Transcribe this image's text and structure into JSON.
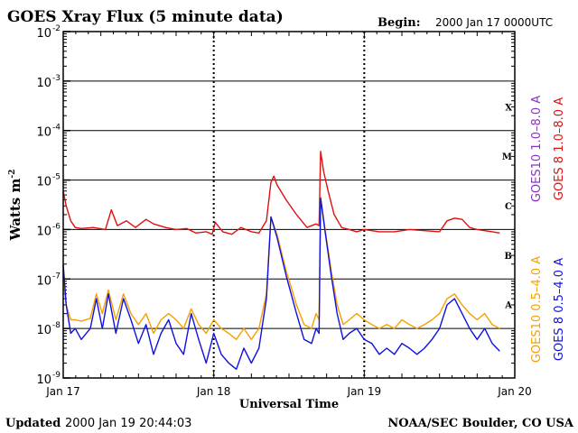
{
  "chart_data": {
    "type": "line",
    "title": "GOES Xray Flux (5 minute data)",
    "begin_label": "Begin:",
    "begin_value": "2000 Jan 17 0000UTC",
    "ylabel": "Watts m",
    "ylabel_sup": "-2",
    "xlabel": "Universal Time",
    "yscale": "log",
    "ylim": [
      1e-09,
      0.01
    ],
    "xlim": [
      0,
      3
    ],
    "x_unit": "days since 2000 Jan 17 00:00 UTC",
    "grid": true,
    "y_ticks": [
      {
        "base": "10",
        "exp": "-2"
      },
      {
        "base": "10",
        "exp": "-3"
      },
      {
        "base": "10",
        "exp": "-4"
      },
      {
        "base": "10",
        "exp": "-5"
      },
      {
        "base": "10",
        "exp": "-6"
      },
      {
        "base": "10",
        "exp": "-7"
      },
      {
        "base": "10",
        "exp": "-8"
      },
      {
        "base": "10",
        "exp": "-9"
      }
    ],
    "x_ticks": [
      "Jan 17",
      "Jan 18",
      "Jan 19",
      "Jan 20"
    ],
    "flare_classes": [
      "X",
      "M",
      "C",
      "B",
      "A"
    ],
    "legend": {
      "long": [
        {
          "text": "GOES10 1.0–8.0 A",
          "color": "#8b2fc9"
        },
        {
          "text": "GOES 8 1.0–8.0 A",
          "color": "#e01010"
        }
      ],
      "short": [
        {
          "text": "GOES10 0.5–4.0 A",
          "color": "#f5a000"
        },
        {
          "text": "GOES 8 0.5–4.0 A",
          "color": "#1010e0"
        }
      ]
    },
    "series": [
      {
        "name": "GOES 8 1.0–8.0 A",
        "color": "#e01010",
        "x": [
          0,
          0.02,
          0.05,
          0.08,
          0.12,
          0.2,
          0.28,
          0.32,
          0.36,
          0.42,
          0.48,
          0.55,
          0.6,
          0.68,
          0.75,
          0.82,
          0.88,
          0.95,
          0.99,
          1.01,
          1.06,
          1.12,
          1.18,
          1.25,
          1.3,
          1.35,
          1.38,
          1.4,
          1.42,
          1.48,
          1.55,
          1.62,
          1.68,
          1.7,
          1.71,
          1.73,
          1.76,
          1.8,
          1.85,
          1.9,
          1.95,
          2.0,
          2.05,
          2.1,
          2.2,
          2.3,
          2.4,
          2.5,
          2.55,
          2.6,
          2.65,
          2.7,
          2.75,
          2.8,
          2.85,
          2.9
        ],
        "y": [
          6e-06,
          3e-06,
          1.5e-06,
          1.1e-06,
          1.05e-06,
          1.1e-06,
          1e-06,
          2.5e-06,
          1.2e-06,
          1.5e-06,
          1.1e-06,
          1.6e-06,
          1.3e-06,
          1.1e-06,
          1e-06,
          1.05e-06,
          8.5e-07,
          9e-07,
          8e-07,
          1.4e-06,
          9e-07,
          8e-07,
          1.1e-06,
          9e-07,
          8.5e-07,
          1.5e-06,
          9e-06,
          1.2e-05,
          8e-06,
          4e-06,
          2e-06,
          1.1e-06,
          1.3e-06,
          1.2e-06,
          3.8e-05,
          1.5e-05,
          6e-06,
          2e-06,
          1.1e-06,
          1e-06,
          9e-07,
          1e-06,
          9.5e-07,
          9e-07,
          9e-07,
          1e-06,
          9.5e-07,
          9e-07,
          1.5e-06,
          1.7e-06,
          1.6e-06,
          1.1e-06,
          1e-06,
          9.5e-07,
          9e-07,
          8.5e-07
        ]
      },
      {
        "name": "GOES10 0.5–4.0 A",
        "color": "#f5a000",
        "x": [
          0,
          0.02,
          0.05,
          0.08,
          0.12,
          0.18,
          0.22,
          0.26,
          0.3,
          0.35,
          0.4,
          0.45,
          0.5,
          0.55,
          0.6,
          0.65,
          0.7,
          0.75,
          0.8,
          0.85,
          0.9,
          0.95,
          1.0,
          1.05,
          1.1,
          1.15,
          1.2,
          1.25,
          1.3,
          1.35,
          1.38,
          1.42,
          1.48,
          1.55,
          1.6,
          1.65,
          1.68,
          1.7,
          1.71,
          1.74,
          1.78,
          1.82,
          1.86,
          1.9,
          1.95,
          2.0,
          2.05,
          2.1,
          2.15,
          2.2,
          2.25,
          2.3,
          2.35,
          2.4,
          2.45,
          2.5,
          2.55,
          2.6,
          2.65,
          2.7,
          2.75,
          2.8,
          2.85,
          2.9
        ],
        "y": [
          1e-07,
          3e-08,
          1.5e-08,
          1.5e-08,
          1.4e-08,
          1.6e-08,
          5e-08,
          2e-08,
          6e-08,
          1.5e-08,
          5e-08,
          2e-08,
          1.2e-08,
          2e-08,
          8e-09,
          1.5e-08,
          2e-08,
          1.5e-08,
          1e-08,
          2.5e-08,
          1.2e-08,
          8e-09,
          1.5e-08,
          1e-08,
          8e-09,
          6e-09,
          1e-08,
          6e-09,
          1e-08,
          5e-08,
          1.8e-06,
          8e-07,
          1.5e-07,
          3e-08,
          1.2e-08,
          1e-08,
          2e-08,
          1.5e-08,
          4.5e-06,
          1e-06,
          1.5e-07,
          3e-08,
          1.2e-08,
          1.5e-08,
          2e-08,
          1.5e-08,
          1.2e-08,
          1e-08,
          1.2e-08,
          1e-08,
          1.5e-08,
          1.2e-08,
          1e-08,
          1.2e-08,
          1.5e-08,
          2e-08,
          4e-08,
          5e-08,
          3e-08,
          2e-08,
          1.5e-08,
          2e-08,
          1.2e-08,
          1e-08
        ]
      },
      {
        "name": "GOES 8 0.5–4.0 A",
        "color": "#1010e0",
        "x": [
          0,
          0.02,
          0.05,
          0.08,
          0.12,
          0.18,
          0.22,
          0.26,
          0.3,
          0.35,
          0.4,
          0.45,
          0.5,
          0.55,
          0.6,
          0.65,
          0.7,
          0.75,
          0.8,
          0.85,
          0.9,
          0.95,
          1.0,
          1.05,
          1.1,
          1.15,
          1.2,
          1.25,
          1.3,
          1.35,
          1.38,
          1.42,
          1.48,
          1.55,
          1.6,
          1.65,
          1.68,
          1.7,
          1.71,
          1.74,
          1.78,
          1.82,
          1.86,
          1.9,
          1.95,
          2.0,
          2.05,
          2.1,
          2.15,
          2.2,
          2.25,
          2.3,
          2.35,
          2.4,
          2.45,
          2.5,
          2.55,
          2.6,
          2.65,
          2.7,
          2.75,
          2.8,
          2.85,
          2.9
        ],
        "y": [
          2e-07,
          3e-08,
          8e-09,
          1e-08,
          6e-09,
          1e-08,
          4e-08,
          1e-08,
          5e-08,
          8e-09,
          4e-08,
          1.5e-08,
          5e-09,
          1.2e-08,
          3e-09,
          8e-09,
          1.5e-08,
          5e-09,
          3e-09,
          2e-08,
          6e-09,
          2e-09,
          8e-09,
          3e-09,
          2e-09,
          1.5e-09,
          4e-09,
          2e-09,
          4e-09,
          4e-08,
          1.8e-06,
          7e-07,
          1.2e-07,
          2e-08,
          6e-09,
          5e-09,
          1e-08,
          8e-09,
          4.3e-06,
          9e-07,
          1.2e-07,
          2e-08,
          6e-09,
          8e-09,
          1e-08,
          6e-09,
          5e-09,
          3e-09,
          4e-09,
          3e-09,
          5e-09,
          4e-09,
          3e-09,
          4e-09,
          6e-09,
          1e-08,
          3e-08,
          4e-08,
          2e-08,
          1e-08,
          6e-09,
          1e-08,
          5e-09,
          3.5e-09
        ]
      }
    ]
  },
  "footer": {
    "updated_label": "Updated",
    "updated_value": "2000 Jan 19 20:44:03",
    "credit": "NOAA/SEC Boulder, CO USA"
  }
}
